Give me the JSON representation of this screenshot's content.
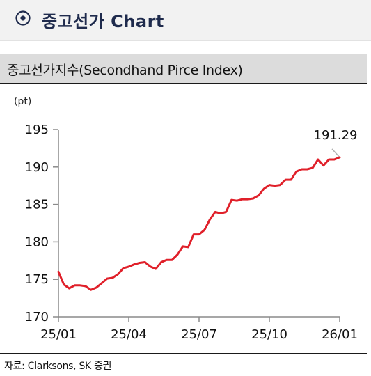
{
  "header": {
    "icon": "target-circle-icon",
    "title": "중고선가 Chart"
  },
  "panel": {
    "title": "중고선가지수(Secondhand Pirce Index)",
    "unit": "(pt)"
  },
  "source": "자료: Clarksons, SK 증권",
  "chart_data": {
    "type": "line",
    "title": "중고선가지수(Secondhand Pirce Index)",
    "ylabel": "(pt)",
    "xlabel": "",
    "ylim": [
      170,
      195
    ],
    "yticks": [
      170,
      175,
      180,
      185,
      190,
      195
    ],
    "x_tick_labels": [
      "25/01",
      "25/04",
      "25/07",
      "25/10",
      "26/01"
    ],
    "x_range": [
      "2025-01-03",
      "2026-01-02"
    ],
    "line_color": "#e0202a",
    "grid": false,
    "annotation": {
      "text": "191.29",
      "date": "2026-01-02",
      "value": 191.29
    },
    "series": [
      {
        "x": [
          "2025-01-03",
          "2025-01-10",
          "2025-01-17",
          "2025-01-24",
          "2025-01-31",
          "2025-02-07",
          "2025-02-14",
          "2025-02-21",
          "2025-02-28",
          "2025-03-07",
          "2025-03-14",
          "2025-03-21",
          "2025-03-28",
          "2025-04-04",
          "2025-04-11",
          "2025-04-18",
          "2025-04-25",
          "2025-05-02",
          "2025-05-09",
          "2025-05-16",
          "2025-05-23",
          "2025-05-30",
          "2025-06-06",
          "2025-06-13",
          "2025-06-20",
          "2025-06-27",
          "2025-07-04",
          "2025-07-11",
          "2025-07-18",
          "2025-07-25",
          "2025-08-01",
          "2025-08-08",
          "2025-08-15",
          "2025-08-22",
          "2025-08-29",
          "2025-09-05",
          "2025-09-12",
          "2025-09-19",
          "2025-09-26",
          "2025-10-03",
          "2025-10-10",
          "2025-10-17",
          "2025-10-24",
          "2025-10-31",
          "2025-11-07",
          "2025-11-14",
          "2025-11-21",
          "2025-11-28",
          "2025-12-05",
          "2025-12-12",
          "2025-12-19",
          "2025-12-26",
          "2026-01-02"
        ],
        "values": [
          176.0,
          174.3,
          173.8,
          174.2,
          174.2,
          174.1,
          173.6,
          173.9,
          174.5,
          175.1,
          175.2,
          175.7,
          176.5,
          176.7,
          177.0,
          177.2,
          177.3,
          176.7,
          176.4,
          177.3,
          177.6,
          177.6,
          178.3,
          179.4,
          179.3,
          181.0,
          181.0,
          181.6,
          183.0,
          184.0,
          183.8,
          184.0,
          185.6,
          185.5,
          185.7,
          185.7,
          185.8,
          186.2,
          187.1,
          187.6,
          187.5,
          187.6,
          188.3,
          188.3,
          189.4,
          189.7,
          189.7,
          189.9,
          191.0,
          190.2,
          191.0,
          191.0,
          191.29
        ]
      }
    ]
  }
}
